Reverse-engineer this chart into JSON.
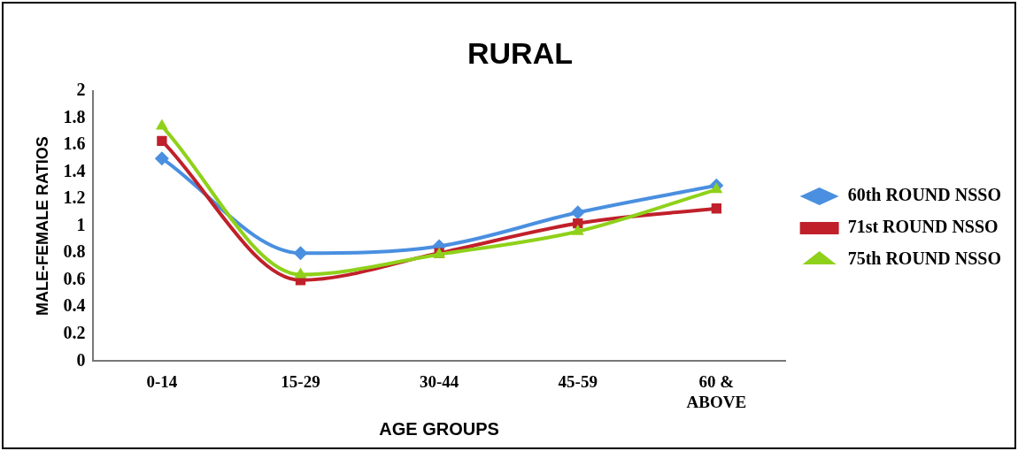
{
  "chart_data": {
    "type": "line",
    "title": "RURAL",
    "xlabel": "AGE GROUPS",
    "ylabel": "MALE-FEMALE RATIOS",
    "categories": [
      "0-14",
      "15-29",
      "30-44",
      "45-59",
      "60 & ABOVE"
    ],
    "series": [
      {
        "name": "60th ROUND NSSO",
        "color": "#4a8fe0",
        "marker": "diamond",
        "values": [
          1.5,
          0.8,
          0.85,
          1.1,
          1.3
        ]
      },
      {
        "name": "71st ROUND NSSO",
        "color": "#c0202a",
        "marker": "square",
        "values": [
          1.63,
          0.6,
          0.8,
          1.02,
          1.13
        ]
      },
      {
        "name": "75th ROUND NSSO",
        "color": "#8fd11a",
        "marker": "triangle",
        "values": [
          1.74,
          0.64,
          0.79,
          0.96,
          1.27
        ]
      }
    ],
    "ylim": [
      0,
      2
    ],
    "yticks": [
      0,
      0.2,
      0.4,
      0.6,
      0.8,
      1,
      1.2,
      1.4,
      1.6,
      1.8,
      2
    ],
    "grid": false,
    "legend": "right"
  }
}
